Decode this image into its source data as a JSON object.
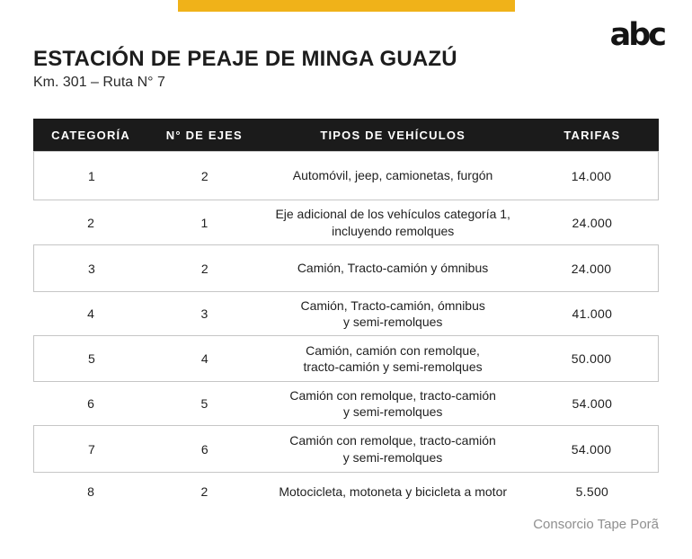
{
  "brand": {
    "logo_text": "abc",
    "accent_yellow": "#F0B219"
  },
  "header": {
    "title": "ESTACIÓN DE PEAJE DE MINGA GUAZÚ",
    "subtitle": "Km. 301 – Ruta N° 7"
  },
  "table": {
    "columns": [
      "CATEGORÍA",
      "N° DE EJES",
      "TIPOS DE VEHÍCULOS",
      "TARIFAS"
    ],
    "rows": [
      {
        "categoria": "1",
        "ejes": "2",
        "tipos": "Automóvil, jeep, camionetas, furgón",
        "tarifa": "14.000"
      },
      {
        "categoria": "2",
        "ejes": "1",
        "tipos": "Eje adicional de los vehículos categoría 1,\nincluyendo remolques",
        "tarifa": "24.000"
      },
      {
        "categoria": "3",
        "ejes": "2",
        "tipos": "Camión, Tracto-camión y ómnibus",
        "tarifa": "24.000"
      },
      {
        "categoria": "4",
        "ejes": "3",
        "tipos": "Camión, Tracto-camión, ómnibus\ny semi-remolques",
        "tarifa": "41.000"
      },
      {
        "categoria": "5",
        "ejes": "4",
        "tipos": "Camión, camión con remolque,\ntracto-camión y semi-remolques",
        "tarifa": "50.000"
      },
      {
        "categoria": "6",
        "ejes": "5",
        "tipos": "Camión con remolque, tracto-camión\ny semi-remolques",
        "tarifa": "54.000"
      },
      {
        "categoria": "7",
        "ejes": "6",
        "tipos": "Camión con remolque, tracto-camión\ny semi-remolques",
        "tarifa": "54.000"
      },
      {
        "categoria": "8",
        "ejes": "2",
        "tipos": "Motocicleta, motoneta y bicicleta a motor",
        "tarifa": "5.500"
      }
    ]
  },
  "footer": {
    "credit": "Consorcio Tape Porã"
  },
  "colors": {
    "header_bg": "#1B1B1B",
    "row_border": "#C6C6C6",
    "footer_text": "#8F8F8F"
  },
  "chart_data": {
    "type": "table",
    "title": "ESTACIÓN DE PEAJE DE MINGA GUAZÚ — Km. 301 – Ruta N° 7",
    "columns": [
      "CATEGORÍA",
      "N° DE EJES",
      "TIPOS DE VEHÍCULOS",
      "TARIFAS"
    ],
    "rows": [
      [
        "1",
        "2",
        "Automóvil, jeep, camionetas, furgón",
        "14.000"
      ],
      [
        "2",
        "1",
        "Eje adicional de los vehículos categoría 1, incluyendo remolques",
        "24.000"
      ],
      [
        "3",
        "2",
        "Camión, Tracto-camión y ómnibus",
        "24.000"
      ],
      [
        "4",
        "3",
        "Camión, Tracto-camión, ómnibus y semi-remolques",
        "41.000"
      ],
      [
        "5",
        "4",
        "Camión, camión con remolque, tracto-camión y semi-remolques",
        "50.000"
      ],
      [
        "6",
        "5",
        "Camión con remolque, tracto-camión y semi-remolques",
        "54.000"
      ],
      [
        "7",
        "6",
        "Camión con remolque, tracto-camión y semi-remolques",
        "54.000"
      ],
      [
        "8",
        "2",
        "Motocicleta, motoneta y bicicleta a motor",
        "5.500"
      ]
    ],
    "tarifas_values": [
      14000,
      24000,
      24000,
      41000,
      50000,
      54000,
      54000,
      5500
    ],
    "source_credit": "Consorcio Tape Porã"
  }
}
